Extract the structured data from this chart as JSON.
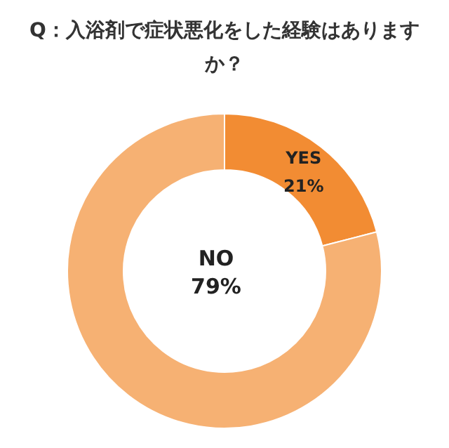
{
  "chart_data": {
    "type": "donut",
    "title": "Q：入浴剤で症状悪化をした経験はありますか？",
    "categories": [
      "YES",
      "NO"
    ],
    "values": [
      21,
      79
    ],
    "value_labels": [
      "21%",
      "79%"
    ],
    "colors": [
      "#f28c33",
      "#f6b173"
    ]
  }
}
